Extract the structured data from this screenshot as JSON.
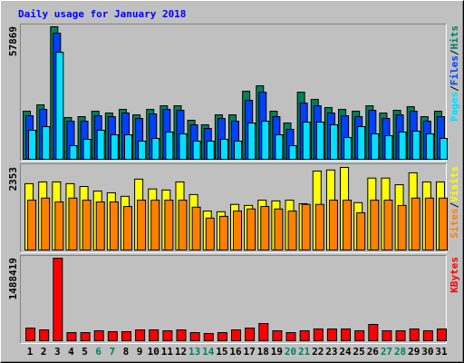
{
  "chart_data": [
    {
      "type": "bar",
      "title": "Daily usage for January 2018",
      "series": [
        {
          "name": "Hits",
          "color": "#00805c",
          "values": [
            20990,
            23760,
            57869,
            18220,
            18610,
            20990,
            20200,
            21780,
            19400,
            21780,
            23360,
            23360,
            17030,
            15050,
            19400,
            19400,
            29700,
            32080,
            20990,
            15840,
            29300,
            26140,
            22570,
            21780,
            20990,
            23360,
            20200,
            21380,
            22970,
            18610,
            20990
          ]
        },
        {
          "name": "Files",
          "color": "#0040ff",
          "values": [
            19000,
            21780,
            55040,
            16630,
            16630,
            19000,
            18610,
            20200,
            17820,
            19800,
            21780,
            21380,
            15050,
            13460,
            17820,
            16630,
            25740,
            29300,
            18610,
            13070,
            24550,
            23360,
            20200,
            19000,
            18610,
            21380,
            17820,
            19400,
            20990,
            16630,
            18610
          ]
        },
        {
          "name": "Pages",
          "color": "#00e0ff",
          "values": [
            12670,
            14260,
            46730,
            5940,
            8710,
            12670,
            10690,
            10690,
            7920,
            9110,
            11880,
            11090,
            7920,
            7920,
            8710,
            7920,
            15840,
            16630,
            10690,
            5940,
            16240,
            16240,
            15050,
            9500,
            14260,
            11090,
            10300,
            11880,
            12280,
            11090,
            9110
          ]
        }
      ],
      "ylim": [
        0,
        57869
      ],
      "yticks": [
        57869
      ],
      "legend_separator": "/"
    },
    {
      "type": "bar",
      "series": [
        {
          "name": "Visits",
          "color": "#ffff00",
          "values": [
            1890,
            1940,
            1940,
            1890,
            1810,
            1680,
            1630,
            1530,
            2020,
            1740,
            1710,
            1940,
            1580,
            1110,
            1090,
            1300,
            1270,
            1420,
            1400,
            1420,
            1320,
            2250,
            2280,
            2353,
            1350,
            2050,
            2050,
            1860,
            2200,
            1940,
            1940
          ]
        },
        {
          "name": "Sites",
          "color": "#ff8000",
          "values": [
            1420,
            1480,
            1370,
            1480,
            1420,
            1370,
            1370,
            1240,
            1420,
            1420,
            1420,
            1420,
            1220,
            910,
            960,
            1110,
            1170,
            1240,
            1170,
            1110,
            1300,
            1300,
            1420,
            1420,
            1060,
            1420,
            1420,
            1270,
            1480,
            1480,
            1480
          ]
        }
      ],
      "ylim": [
        0,
        2353
      ],
      "yticks": [
        2353
      ],
      "legend_separator": "/"
    },
    {
      "type": "bar",
      "series": [
        {
          "name": "KBytes",
          "color": "#ff0000",
          "values": [
            229000,
            196000,
            1488419,
            147000,
            147000,
            180000,
            164000,
            164000,
            196000,
            196000,
            180000,
            196000,
            147000,
            131000,
            147000,
            196000,
            229000,
            311000,
            180000,
            147000,
            180000,
            213000,
            213000,
            213000,
            180000,
            294000,
            180000,
            180000,
            213000,
            180000,
            213000
          ]
        }
      ],
      "ylim": [
        0,
        1488419
      ],
      "yticks": [
        1488419
      ],
      "categories": [
        "1",
        "2",
        "3",
        "4",
        "5",
        "6",
        "7",
        "8",
        "9",
        "10",
        "11",
        "12",
        "13",
        "14",
        "15",
        "16",
        "17",
        "18",
        "19",
        "20",
        "21",
        "22",
        "23",
        "24",
        "25",
        "26",
        "27",
        "28",
        "29",
        "30",
        "31"
      ],
      "category_colors": [
        "#000000",
        "#000000",
        "#000000",
        "#000000",
        "#000000",
        "#00805c",
        "#00805c",
        "#000000",
        "#000000",
        "#000000",
        "#000000",
        "#000000",
        "#00805c",
        "#00805c",
        "#000000",
        "#000000",
        "#000000",
        "#000000",
        "#000000",
        "#00805c",
        "#00805c",
        "#000000",
        "#000000",
        "#000000",
        "#000000",
        "#000000",
        "#00805c",
        "#00805c",
        "#000000",
        "#000000",
        "#000000"
      ]
    }
  ]
}
